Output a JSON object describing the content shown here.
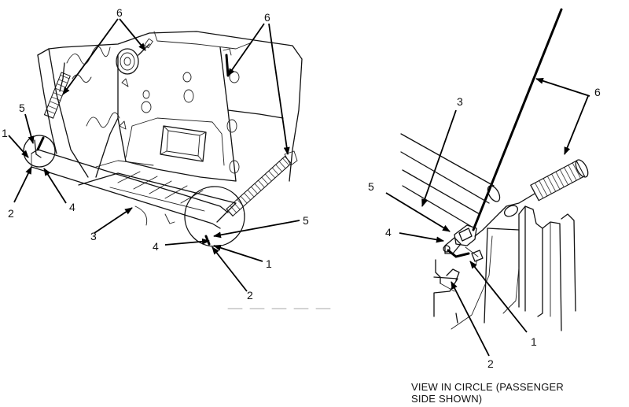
{
  "callouts": {
    "left": {
      "c1": "1",
      "c2": "2",
      "c3": "3",
      "c4": "4",
      "c5": "5",
      "c6": "6",
      "c1b": "1",
      "c2b": "2",
      "c4b": "4",
      "c5b": "5",
      "c6b": "6"
    },
    "right": {
      "c1": "1",
      "c2": "2",
      "c3": "3",
      "c4": "4",
      "c5": "5",
      "c6": "6"
    }
  },
  "caption": {
    "line1": "VIEW IN CIRCLE (PASSENGER",
    "line2": "SIDE SHOWN)"
  }
}
